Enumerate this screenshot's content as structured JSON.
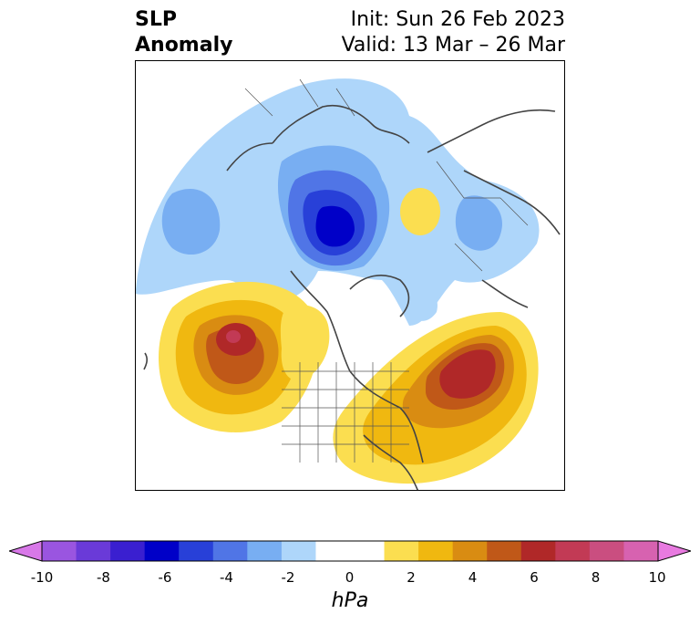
{
  "title": {
    "left_line1": "SLP",
    "left_line2": "Anomaly",
    "right_line1": "Init: Sun 26 Feb 2023",
    "right_line2": "Valid: 13 Mar – 26 Mar"
  },
  "colorbar": {
    "unit_label": "hPa",
    "ticks": [
      "-10",
      "-8",
      "-6",
      "-4",
      "-2",
      "0",
      "2",
      "4",
      "6",
      "8",
      "10"
    ],
    "colors": [
      "#d878e8",
      "#9a55e0",
      "#6a3ad8",
      "#3a1fd0",
      "#0000c8",
      "#2840d8",
      "#5075e6",
      "#78aef2",
      "#aed6fa",
      "#ffffff",
      "#ffffff",
      "#fbde50",
      "#f0b810",
      "#d98c12",
      "#c05818",
      "#b02828",
      "#c23a55",
      "#ca4e80",
      "#d762b0",
      "#e87ae0"
    ]
  },
  "map": {
    "description_field": "sea-level-pressure-anomaly",
    "units": "hPa"
  }
}
